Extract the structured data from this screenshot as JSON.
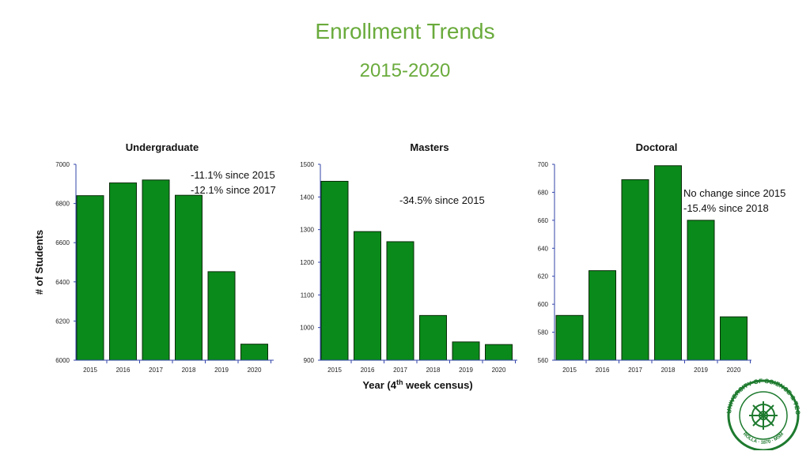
{
  "title": "Enrollment Trends",
  "subtitle": "2015-2020",
  "ylabel": "# of Students",
  "xlabel_main": "Year (4",
  "xlabel_sup": "th",
  "xlabel_rest": " week census)",
  "bar_color": "#0a8a1a",
  "bar_stroke": "#0b2b0b",
  "axis_color": "#3344aa",
  "logo": {
    "icon": "university-seal-icon",
    "text_top": "MISSOURI UNIVERSITY OF SCIENCE & TECHNOLOGY",
    "text_bottom": "ROLLA · 1870 · MSM"
  },
  "chart_data": [
    {
      "type": "bar",
      "title": "Undergraduate",
      "categories": [
        "2015",
        "2016",
        "2017",
        "2018",
        "2019",
        "2020"
      ],
      "values": [
        6840,
        6905,
        6920,
        6842,
        6452,
        6082
      ],
      "ylim": [
        6000,
        7000
      ],
      "yticks": [
        6000,
        6200,
        6400,
        6600,
        6800,
        7000
      ],
      "annotations": [
        "-11.1% since 2015",
        "-12.1% since 2017"
      ]
    },
    {
      "type": "bar",
      "title": "Masters",
      "categories": [
        "2015",
        "2016",
        "2017",
        "2018",
        "2019",
        "2020"
      ],
      "values": [
        1448,
        1294,
        1263,
        1037,
        956,
        948
      ],
      "ylim": [
        900,
        1500
      ],
      "yticks": [
        900,
        1000,
        1100,
        1200,
        1300,
        1400,
        1500
      ],
      "annotations": [
        "-34.5% since 2015"
      ]
    },
    {
      "type": "bar",
      "title": "Doctoral",
      "categories": [
        "2015",
        "2016",
        "2017",
        "2018",
        "2019",
        "2020"
      ],
      "values": [
        592,
        624,
        689,
        699,
        660,
        591
      ],
      "ylim": [
        560,
        700
      ],
      "yticks": [
        560,
        580,
        600,
        620,
        640,
        660,
        680,
        700
      ],
      "annotations": [
        "No change since 2015",
        "-15.4% since 2018"
      ]
    }
  ]
}
